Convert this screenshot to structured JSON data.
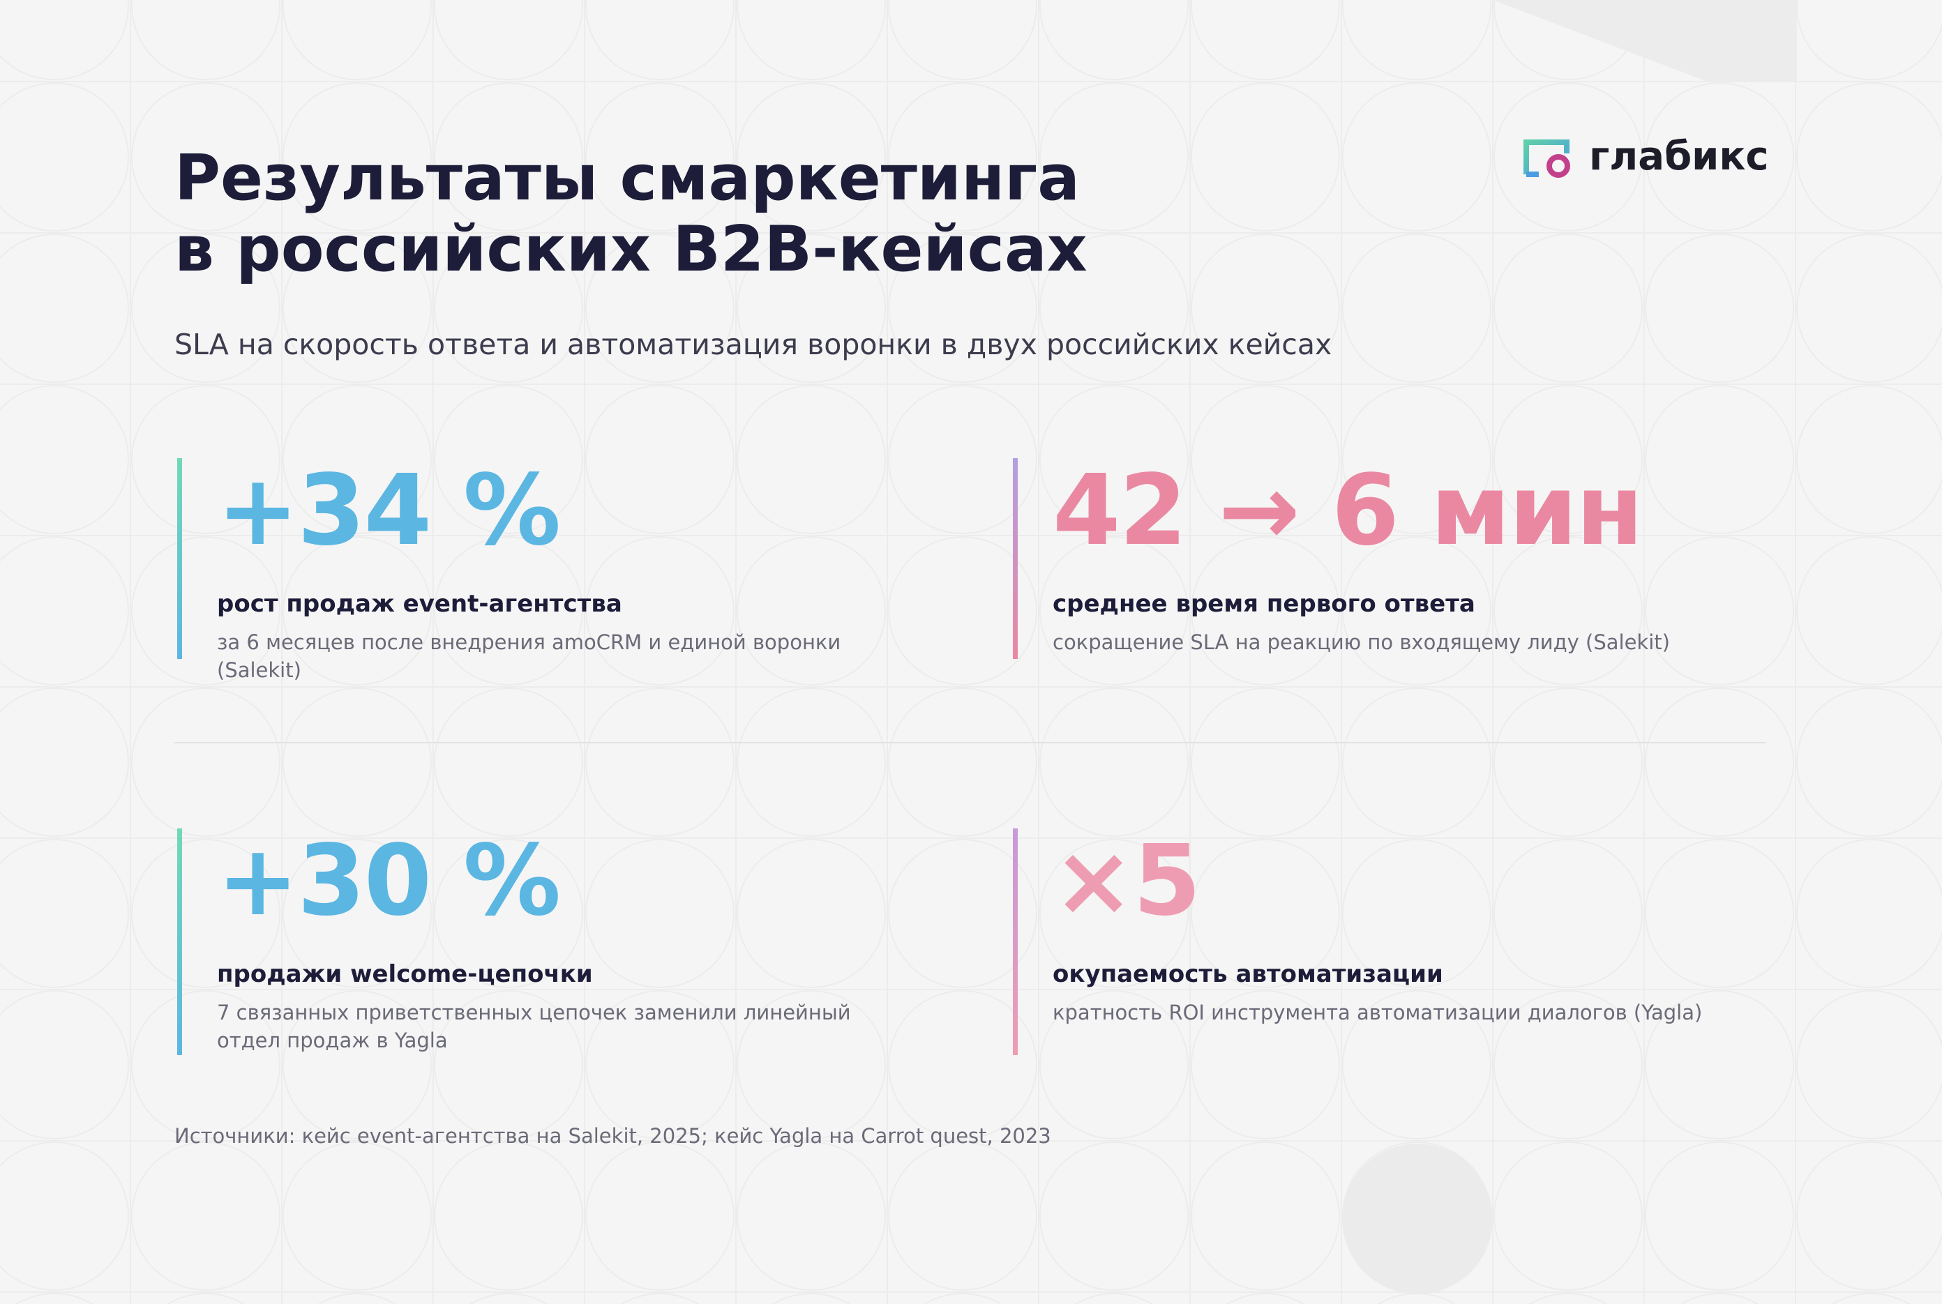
{
  "header": {
    "title_lines": [
      "Результаты смаркетинга",
      "в российских B2B-кейсах"
    ],
    "subtitle": "SLA на скорость ответа и автоматизация воронки в двух российских кейсах",
    "logo": "глабикс"
  },
  "stats": [
    {
      "value": "+34 %",
      "label": "рост продаж event-агентства",
      "description": "за 6 месяцев после внедрения amoCRM и единой воронки (Salekit)"
    },
    {
      "value": "42 → 6 мин",
      "label": "среднее время первого ответа",
      "description": "сокращение SLA на реакцию по входящему лиду (Salekit)"
    },
    {
      "value": "+30 %",
      "label": "продажи welcome-цепочки",
      "description": "7 связанных приветственных цепочек заменили линейный отдел продаж в Yagla"
    },
    {
      "value": "×5",
      "label": "окупаемость автоматизации",
      "description": "кратность ROI инструмента автоматизации диалогов (Yagla)"
    }
  ],
  "source": "Источники: кейс event-агентства на Salekit, 2025; кейс Yagla на Carrot quest, 2023"
}
